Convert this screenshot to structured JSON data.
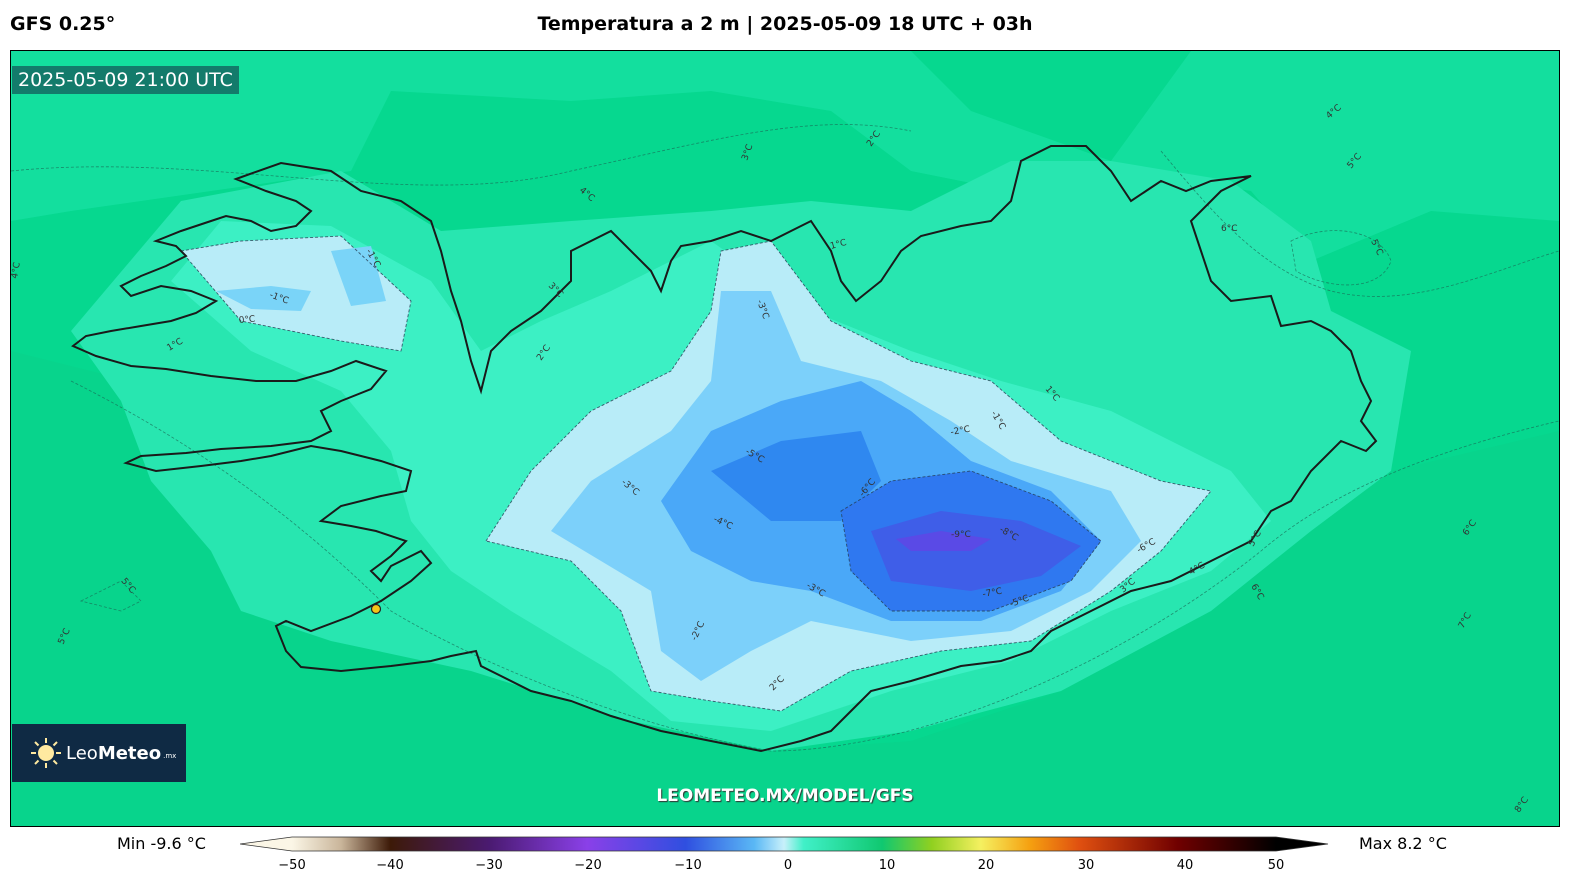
{
  "header": {
    "model": "GFS 0.25°",
    "title": "Temperatura a 2 m | 2025-05-09 18 UTC + 03h"
  },
  "map": {
    "valid_time": "2025-05-09 21:00 UTC",
    "watermark": "LEOMETEO.MX/MODEL/GFS",
    "logo": {
      "name_light": "Leo",
      "name_bold": "Meteo",
      "tld": ".mx"
    },
    "contour_labels": [
      "-1°C",
      "-1°C",
      "0°C",
      "1°C",
      "2°C",
      "3°C",
      "4°C",
      "5°C",
      "6°C",
      "5°C",
      "4°C",
      "1°C",
      "1°C",
      "-3°C",
      "-2°C",
      "-1°C",
      "-5°C",
      "-3°C",
      "-4°C",
      "-6°C",
      "-9°C",
      "-8°C",
      "-3°C",
      "-7°C",
      "-5°C",
      "-2°C",
      "2°C",
      "-6°C",
      "4°C",
      "5°C",
      "6°C",
      "6°C",
      "7°C",
      "8°C",
      "5°C",
      "5°C",
      "3°C",
      "2°C",
      "4°C",
      "3°C"
    ],
    "colors": {
      "sea": "#06d88f",
      "coast": "#1a1a1a",
      "marker": "#f5c518"
    }
  },
  "colorbar": {
    "min_label": "Min -9.6 °C",
    "max_label": "Max 8.2 °C",
    "range": [
      -50,
      50
    ],
    "ticks": [
      "−50",
      "−40",
      "−30",
      "−20",
      "−10",
      "0",
      "10",
      "20",
      "30",
      "40",
      "50"
    ],
    "stops": [
      {
        "v": -50,
        "c": "#fbf6e6"
      },
      {
        "v": -45,
        "c": "#c9b59a"
      },
      {
        "v": -40,
        "c": "#3d1a08"
      },
      {
        "v": -30,
        "c": "#4a1a70"
      },
      {
        "v": -20,
        "c": "#8a40e8"
      },
      {
        "v": -10,
        "c": "#2f4fe0"
      },
      {
        "v": -3,
        "c": "#5ab8f5"
      },
      {
        "v": 0,
        "c": "#c8f0fa"
      },
      {
        "v": 2,
        "c": "#40f0c8"
      },
      {
        "v": 10,
        "c": "#10c870"
      },
      {
        "v": 15,
        "c": "#90d020"
      },
      {
        "v": 20,
        "c": "#f5f060"
      },
      {
        "v": 25,
        "c": "#f5a010"
      },
      {
        "v": 30,
        "c": "#e05010"
      },
      {
        "v": 40,
        "c": "#700000"
      },
      {
        "v": 50,
        "c": "#000000"
      }
    ]
  }
}
